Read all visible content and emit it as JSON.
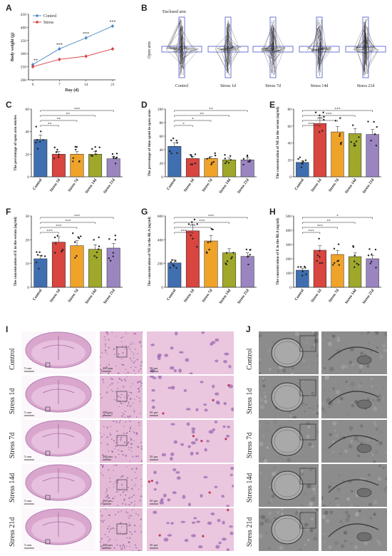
{
  "panels": {
    "A": "A",
    "B": "B",
    "C": "C",
    "D": "D",
    "E": "E",
    "F": "F",
    "G": "G",
    "H": "H",
    "I": "I",
    "J": "J"
  },
  "colors": {
    "control": "#4a86c5",
    "stress": "#d64045",
    "bars": [
      "#3f6fb0",
      "#d9453f",
      "#f0a329",
      "#9fa82a",
      "#9b85c1"
    ],
    "he_pink": "#e6b8d4",
    "he_purple": "#b77fb6",
    "em_gray": "#8a8a8a"
  },
  "panelA": {
    "chart_data": {
      "type": "line",
      "xlabel": "Day (d)",
      "ylabel": "Body weight (g)",
      "x": [
        0,
        7,
        14,
        21
      ],
      "xticks": [
        "0",
        "7",
        "14",
        "21"
      ],
      "yticks": [
        "200",
        "250",
        "300",
        "350",
        "400",
        "450"
      ],
      "ylim": [
        200,
        450
      ],
      "series": [
        {
          "name": "Control",
          "values": [
            258,
            318,
            360,
            405
          ]
        },
        {
          "name": "Stress",
          "values": [
            250,
            278,
            290,
            318
          ]
        }
      ],
      "annotations": [
        "**",
        "***",
        "***",
        "***"
      ],
      "legend": "top-left"
    }
  },
  "panelB": {
    "top_label": "Enclosed arm",
    "side_label": "Open arm",
    "groups": [
      "Control",
      "Stress 1d",
      "Stress 7d",
      "Stress 14d",
      "Stress 21d"
    ]
  },
  "bar_charts": [
    {
      "id": "C",
      "chart_data": {
        "type": "bar",
        "categories": [
          "Control",
          "Stress 1d",
          "Stress 7d",
          "Stress 14d",
          "Stress 21d"
        ],
        "values": [
          33,
          20,
          20,
          20,
          16
        ],
        "ylabel": "The percentage of open arm entries",
        "ylim": [
          0,
          60
        ],
        "yticks": [
          "0",
          "20",
          "40",
          "60"
        ],
        "significance": [
          "**",
          "**",
          "**",
          "***"
        ]
      }
    },
    {
      "id": "D",
      "chart_data": {
        "type": "bar",
        "categories": [
          "Control",
          "Stress 1d",
          "Stress 7d",
          "Stress 14d",
          "Stress 21d"
        ],
        "values": [
          45,
          27,
          27,
          25,
          25
        ],
        "ylabel": "The percentage of time spent in open arms",
        "ylim": [
          0,
          100
        ],
        "yticks": [
          "0",
          "20",
          "40",
          "60",
          "80",
          "100"
        ],
        "significance": [
          "*",
          "*",
          "**",
          "**"
        ]
      }
    },
    {
      "id": "E",
      "chart_data": {
        "type": "bar",
        "categories": [
          "Control",
          "Stress 1d",
          "Stress 7d",
          "Stress 14d",
          "Stress 21d"
        ],
        "values": [
          17,
          63,
          53,
          51,
          50
        ],
        "ylabel": "The concentration of NE in the serum (ng/ml)",
        "ylim": [
          0,
          80
        ],
        "yticks": [
          "0",
          "20",
          "40",
          "60",
          "80"
        ],
        "significance": [
          "***",
          "***",
          "***",
          "***"
        ]
      }
    },
    {
      "id": "F",
      "chart_data": {
        "type": "bar",
        "categories": [
          "Control",
          "Stress 1d",
          "Stress 7d",
          "Stress 14d",
          "Stress 21d"
        ],
        "values": [
          12,
          19,
          17.5,
          16,
          16.5
        ],
        "ylabel": "The concentration of E in the serum (ng/ml)",
        "ylim": [
          0,
          30
        ],
        "yticks": [
          "0",
          "10",
          "20",
          "30"
        ],
        "significance": [
          "***",
          "***",
          "***",
          "***"
        ]
      }
    },
    {
      "id": "G",
      "chart_data": {
        "type": "bar",
        "categories": [
          "Control",
          "Stress 1d",
          "Stress 7d",
          "Stress 14d",
          "Stress 21d"
        ],
        "values": [
          205,
          475,
          390,
          290,
          260
        ],
        "ylabel": "The concentration of NE in the BLA (ng/ml)",
        "ylim": [
          0,
          600
        ],
        "yticks": [
          "0",
          "200",
          "400",
          "600"
        ],
        "significance": [
          "***",
          "***",
          "***",
          "***"
        ]
      }
    },
    {
      "id": "H",
      "chart_data": {
        "type": "bar",
        "categories": [
          "Control",
          "Stress 1d",
          "Stress 7d",
          "Stress 14d",
          "Stress 21d"
        ],
        "values": [
          120,
          260,
          230,
          215,
          200
        ],
        "ylabel": "The concentration of E in the BLA (ng/ml)",
        "ylim": [
          0,
          500
        ],
        "yticks": [
          "0",
          "100",
          "200",
          "300",
          "400",
          "500"
        ],
        "significance": [
          "***",
          "***",
          "**",
          "*"
        ]
      }
    }
  ],
  "panelI": {
    "rows": [
      "Control",
      "Stress 1d",
      "Stress 7d",
      "Stress 14d",
      "Stress 21d"
    ],
    "scales": [
      "5 mm",
      "200 μm",
      "50 μm"
    ]
  },
  "panelJ": {
    "rows": [
      "Control",
      "Stress 1d",
      "Stress 7d",
      "Stress 14d",
      "Stress 21d"
    ]
  }
}
